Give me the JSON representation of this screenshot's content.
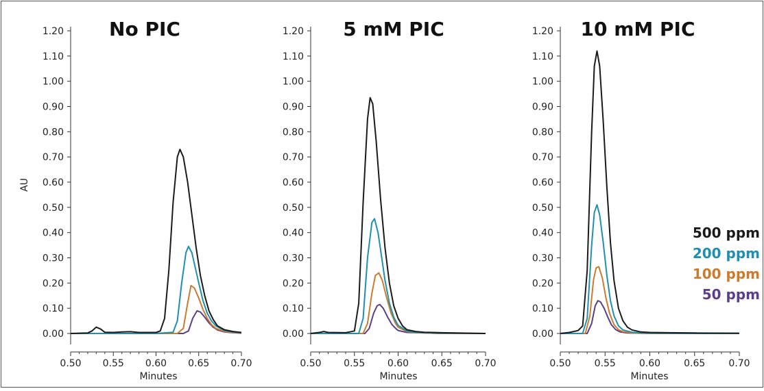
{
  "legend": [
    {
      "label": "500 ppm",
      "color": "#1a1a1a"
    },
    {
      "label": "200 ppm",
      "color": "#1f8fb0"
    },
    {
      "label": "100 ppm",
      "color": "#cc7a2e"
    },
    {
      "label": "50 ppm",
      "color": "#5b3f86"
    }
  ],
  "chart_data": [
    {
      "type": "line",
      "title": "No PIC",
      "xlabel": "Minutes",
      "ylabel": "AU",
      "xlim": [
        0.5,
        0.7
      ],
      "ylim": [
        0.0,
        1.2
      ],
      "xticks": [
        "0.50",
        "0.55",
        "0.60",
        "0.65",
        "0.70"
      ],
      "yticks": [
        "0.00",
        "0.10",
        "0.20",
        "0.30",
        "0.40",
        "0.50",
        "0.60",
        "0.70",
        "0.80",
        "0.90",
        "1.00",
        "1.10",
        "1.20"
      ],
      "series": [
        {
          "color": "#1a1a1a",
          "x": [
            0.5,
            0.52,
            0.525,
            0.53,
            0.535,
            0.54,
            0.55,
            0.56,
            0.57,
            0.58,
            0.6,
            0.605,
            0.61,
            0.615,
            0.62,
            0.625,
            0.628,
            0.632,
            0.637,
            0.642,
            0.647,
            0.652,
            0.657,
            0.662,
            0.667,
            0.672,
            0.68,
            0.69,
            0.7
          ],
          "y": [
            0.0,
            0.002,
            0.01,
            0.025,
            0.018,
            0.005,
            0.004,
            0.006,
            0.007,
            0.004,
            0.004,
            0.01,
            0.06,
            0.25,
            0.52,
            0.7,
            0.73,
            0.7,
            0.6,
            0.47,
            0.34,
            0.23,
            0.15,
            0.09,
            0.055,
            0.03,
            0.015,
            0.008,
            0.004
          ]
        },
        {
          "color": "#1f8fb0",
          "x": [
            0.5,
            0.6,
            0.62,
            0.625,
            0.63,
            0.635,
            0.638,
            0.642,
            0.646,
            0.65,
            0.655,
            0.66,
            0.665,
            0.67,
            0.68,
            0.69,
            0.7
          ],
          "y": [
            0.0,
            0.0,
            0.005,
            0.05,
            0.2,
            0.32,
            0.345,
            0.32,
            0.26,
            0.2,
            0.13,
            0.08,
            0.05,
            0.03,
            0.012,
            0.006,
            0.003
          ]
        },
        {
          "color": "#cc7a2e",
          "x": [
            0.5,
            0.625,
            0.632,
            0.637,
            0.641,
            0.645,
            0.65,
            0.655,
            0.66,
            0.665,
            0.67,
            0.68,
            0.69,
            0.7
          ],
          "y": [
            0.0,
            0.0,
            0.02,
            0.12,
            0.19,
            0.18,
            0.14,
            0.095,
            0.06,
            0.035,
            0.02,
            0.008,
            0.004,
            0.002
          ]
        },
        {
          "color": "#5b3f86",
          "x": [
            0.5,
            0.632,
            0.638,
            0.643,
            0.648,
            0.652,
            0.657,
            0.662,
            0.667,
            0.672,
            0.68,
            0.69,
            0.7
          ],
          "y": [
            0.0,
            0.0,
            0.01,
            0.06,
            0.09,
            0.085,
            0.065,
            0.042,
            0.025,
            0.014,
            0.006,
            0.003,
            0.001
          ]
        }
      ]
    },
    {
      "type": "line",
      "title": "5 mM PIC",
      "xlabel": "Minutes",
      "ylabel": "",
      "xlim": [
        0.5,
        0.7
      ],
      "ylim": [
        0.0,
        1.2
      ],
      "xticks": [
        "0.50",
        "0.55",
        "0.60",
        "0.65",
        "0.70"
      ],
      "yticks": [
        "0.00",
        "0.10",
        "0.20",
        "0.30",
        "0.40",
        "0.50",
        "0.60",
        "0.70",
        "0.80",
        "0.90",
        "1.00",
        "1.10",
        "1.20"
      ],
      "series": [
        {
          "color": "#1a1a1a",
          "x": [
            0.5,
            0.51,
            0.515,
            0.52,
            0.54,
            0.55,
            0.555,
            0.56,
            0.565,
            0.568,
            0.571,
            0.575,
            0.58,
            0.585,
            0.59,
            0.595,
            0.6,
            0.605,
            0.61,
            0.62,
            0.63,
            0.65,
            0.7
          ],
          "y": [
            0.0,
            0.004,
            0.008,
            0.004,
            0.003,
            0.01,
            0.12,
            0.52,
            0.85,
            0.935,
            0.91,
            0.76,
            0.53,
            0.34,
            0.2,
            0.11,
            0.06,
            0.03,
            0.015,
            0.008,
            0.005,
            0.003,
            0.0
          ]
        },
        {
          "color": "#1f8fb0",
          "x": [
            0.5,
            0.555,
            0.56,
            0.565,
            0.57,
            0.573,
            0.577,
            0.58,
            0.585,
            0.59,
            0.595,
            0.6,
            0.61,
            0.62,
            0.65,
            0.7
          ],
          "y": [
            0.0,
            0.0,
            0.06,
            0.3,
            0.44,
            0.455,
            0.4,
            0.33,
            0.21,
            0.12,
            0.065,
            0.032,
            0.01,
            0.004,
            0.001,
            0.0
          ]
        },
        {
          "color": "#cc7a2e",
          "x": [
            0.5,
            0.56,
            0.565,
            0.57,
            0.574,
            0.578,
            0.582,
            0.587,
            0.592,
            0.597,
            0.6,
            0.61,
            0.62,
            0.65,
            0.7
          ],
          "y": [
            0.0,
            0.0,
            0.04,
            0.16,
            0.23,
            0.24,
            0.21,
            0.14,
            0.08,
            0.04,
            0.025,
            0.008,
            0.003,
            0.0,
            0.0
          ]
        },
        {
          "color": "#5b3f86",
          "x": [
            0.5,
            0.562,
            0.567,
            0.572,
            0.576,
            0.579,
            0.583,
            0.588,
            0.593,
            0.598,
            0.6,
            0.61,
            0.65,
            0.7
          ],
          "y": [
            0.0,
            0.0,
            0.02,
            0.08,
            0.11,
            0.115,
            0.1,
            0.065,
            0.035,
            0.017,
            0.012,
            0.004,
            0.0,
            0.0
          ]
        }
      ]
    },
    {
      "type": "line",
      "title": "10 mM PIC",
      "xlabel": "Minutes",
      "ylabel": "",
      "xlim": [
        0.5,
        0.7
      ],
      "ylim": [
        0.0,
        1.2
      ],
      "xticks": [
        "0.50",
        "0.55",
        "0.60",
        "0.65",
        "0.70"
      ],
      "yticks": [
        "0.00",
        "0.10",
        "0.20",
        "0.30",
        "0.40",
        "0.50",
        "0.60",
        "0.70",
        "0.80",
        "0.90",
        "1.00",
        "1.10",
        "1.20"
      ],
      "series": [
        {
          "color": "#1a1a1a",
          "x": [
            0.5,
            0.51,
            0.515,
            0.52,
            0.525,
            0.53,
            0.535,
            0.538,
            0.541,
            0.544,
            0.548,
            0.552,
            0.556,
            0.56,
            0.565,
            0.57,
            0.575,
            0.58,
            0.59,
            0.6,
            0.62,
            0.65,
            0.7
          ],
          "y": [
            0.0,
            0.004,
            0.008,
            0.012,
            0.03,
            0.25,
            0.8,
            1.06,
            1.12,
            1.06,
            0.84,
            0.58,
            0.36,
            0.21,
            0.1,
            0.05,
            0.025,
            0.014,
            0.006,
            0.004,
            0.003,
            0.002,
            0.001
          ]
        },
        {
          "color": "#1f8fb0",
          "x": [
            0.5,
            0.525,
            0.53,
            0.535,
            0.538,
            0.541,
            0.544,
            0.548,
            0.552,
            0.556,
            0.56,
            0.565,
            0.57,
            0.58,
            0.6,
            0.65,
            0.7
          ],
          "y": [
            0.0,
            0.0,
            0.06,
            0.35,
            0.48,
            0.51,
            0.47,
            0.36,
            0.23,
            0.13,
            0.07,
            0.03,
            0.014,
            0.005,
            0.001,
            0.0,
            0.0
          ]
        },
        {
          "color": "#cc7a2e",
          "x": [
            0.5,
            0.528,
            0.533,
            0.537,
            0.54,
            0.543,
            0.547,
            0.551,
            0.555,
            0.56,
            0.565,
            0.57,
            0.58,
            0.6,
            0.7
          ],
          "y": [
            0.0,
            0.0,
            0.07,
            0.21,
            0.26,
            0.265,
            0.22,
            0.14,
            0.08,
            0.035,
            0.015,
            0.007,
            0.002,
            0.0,
            0.0
          ]
        },
        {
          "color": "#5b3f86",
          "x": [
            0.5,
            0.53,
            0.535,
            0.539,
            0.542,
            0.545,
            0.549,
            0.553,
            0.557,
            0.562,
            0.567,
            0.575,
            0.6,
            0.7
          ],
          "y": [
            0.0,
            0.0,
            0.04,
            0.11,
            0.13,
            0.125,
            0.1,
            0.065,
            0.035,
            0.015,
            0.006,
            0.002,
            0.0,
            0.0
          ]
        }
      ]
    }
  ]
}
